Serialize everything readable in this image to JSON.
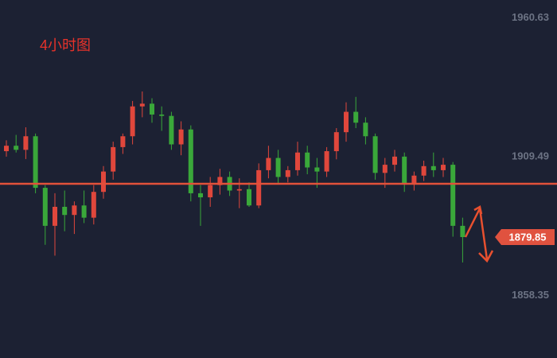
{
  "chart_data": {
    "type": "candlestick",
    "title": "4小时图",
    "open": [
      1911.5,
      1913.5,
      1912.0,
      1917.0,
      1898.0,
      1884.0,
      1891.0,
      1888.0,
      1891.5,
      1887.0,
      1896.5,
      1904.0,
      1913.0,
      1917.0,
      1928.0,
      1929.0,
      1925.0,
      1924.5,
      1914.0,
      1919.5,
      1896.0,
      1894.5,
      1899.0,
      1902.0,
      1897.0,
      1897.5,
      1891.5,
      1904.5,
      1909.0,
      1902.0,
      1904.5,
      1911.0,
      1905.5,
      1904.0,
      1911.5,
      1918.5,
      1926.0,
      1922.0,
      1917.0,
      1903.5,
      1906.5,
      1909.5,
      1899.5,
      1902.5,
      1906.0,
      1904.5,
      1906.5,
      1884.0
    ],
    "high": [
      1915.5,
      1917.5,
      1920.3,
      1918.0,
      1899.0,
      1896.0,
      1897.0,
      1893.0,
      1897.0,
      1899.0,
      1906.0,
      1915.0,
      1918.0,
      1930.0,
      1933.5,
      1931.0,
      1928.0,
      1926.0,
      1922.5,
      1921.0,
      1899.0,
      1902.0,
      1905.0,
      1904.0,
      1901.5,
      1900.0,
      1907.0,
      1913.5,
      1912.0,
      1906.0,
      1915.0,
      1913.5,
      1909.0,
      1913.0,
      1920.0,
      1929.5,
      1931.5,
      1924.0,
      1918.0,
      1909.0,
      1912.0,
      1911.0,
      1904.0,
      1908.0,
      1911.0,
      1909.0,
      1907.5,
      1887.0
    ],
    "low": [
      1909.5,
      1911.0,
      1908.6,
      1896.0,
      1877.0,
      1873.0,
      1882.0,
      1881.0,
      1885.0,
      1884.5,
      1894.0,
      1901.0,
      1910.5,
      1914.0,
      1924.0,
      1922.0,
      1919.0,
      1912.0,
      1910.0,
      1893.0,
      1884.0,
      1891.0,
      1895.5,
      1895.0,
      1890.5,
      1891.0,
      1890.5,
      1901.5,
      1899.5,
      1900.0,
      1902.5,
      1903.0,
      1898.0,
      1902.0,
      1908.5,
      1915.0,
      1920.0,
      1914.0,
      1901.0,
      1898.0,
      1904.0,
      1896.5,
      1897.0,
      1900.5,
      1902.0,
      1902.0,
      1880.0,
      1870.5
    ],
    "close": [
      1913.5,
      1912.0,
      1917.0,
      1898.0,
      1884.0,
      1891.0,
      1888.0,
      1891.5,
      1887.0,
      1896.5,
      1904.0,
      1913.0,
      1917.0,
      1928.0,
      1929.0,
      1925.0,
      1924.5,
      1914.0,
      1919.5,
      1896.0,
      1894.5,
      1899.0,
      1902.0,
      1897.0,
      1897.5,
      1891.5,
      1904.5,
      1909.0,
      1902.0,
      1904.5,
      1911.0,
      1905.5,
      1904.0,
      1911.5,
      1918.5,
      1926.0,
      1922.0,
      1917.0,
      1903.5,
      1906.5,
      1909.5,
      1899.5,
      1902.5,
      1906.0,
      1904.5,
      1906.5,
      1884.0,
      1879.85
    ],
    "up_color": "#e0473c",
    "down_color": "#3aa83a",
    "level": 1899.5,
    "level_color": "#e2513a",
    "last_price": 1879.85,
    "ylim": [
      1835.3,
      1967.2
    ],
    "yticks": [
      1960.63,
      1909.49,
      1858.35
    ]
  }
}
